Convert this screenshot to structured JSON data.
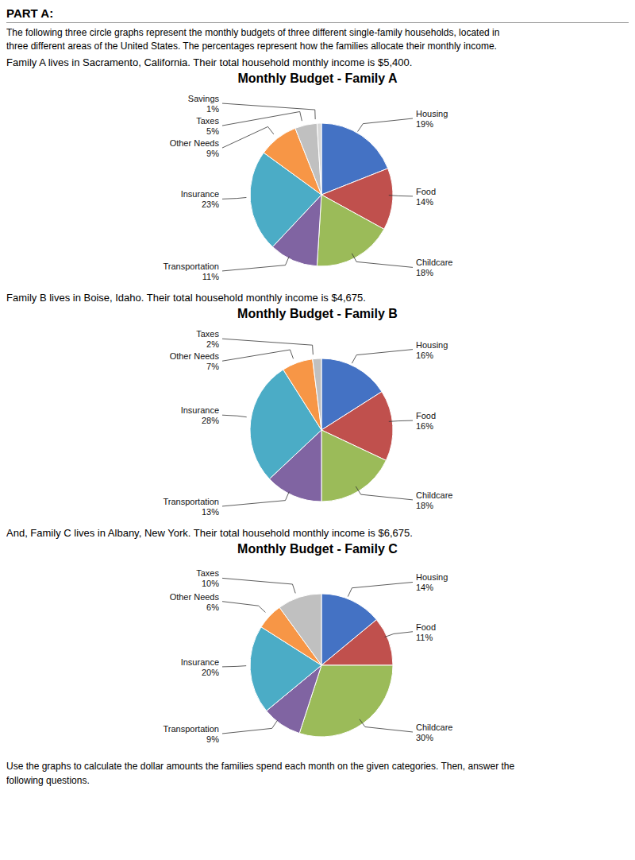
{
  "title": "PART A:",
  "subtitle": "The following three circle graphs represent the monthly budgets of three different single-family households, located in\nthree different areas of the United States. The percentages represent how the families allocate their monthly income.",
  "annotations": [
    "Use the graphs to calculate the dollar amounts the families spend each month on the given categories. Then, answer the\nfollowing questions."
  ],
  "chart_data": [
    {
      "type": "pie",
      "subtitle": "Family A lives in Sacramento, California. Their total household monthly income is $5,400.",
      "title": "Monthly Budget - Family A",
      "categories": [
        "Housing",
        "Food",
        "Childcare",
        "Transportation",
        "Insurance",
        "Other Needs",
        "Taxes",
        "Savings"
      ],
      "values": [
        19,
        14,
        18,
        11,
        23,
        9,
        5,
        1
      ],
      "value_labels": [
        "19%",
        "14%",
        "18%",
        "11%",
        "23%",
        "9%",
        "5%",
        "1%"
      ],
      "colors": [
        "#4472C4",
        "#C0504D",
        "#9BBB59",
        "#8064A2",
        "#4BACC6",
        "#F79646",
        "#C0C0C0",
        "#D8D8D8"
      ],
      "data_labels": true
    },
    {
      "type": "pie",
      "subtitle": "Family B lives in Boise, Idaho. Their total household monthly income is $4,675.",
      "title": "Monthly Budget - Family B",
      "categories": [
        "Housing",
        "Food",
        "Childcare",
        "Transportation",
        "Insurance",
        "Other Needs",
        "Taxes"
      ],
      "values": [
        16,
        16,
        18,
        13,
        28,
        7,
        2
      ],
      "value_labels": [
        "16%",
        "16%",
        "18%",
        "13%",
        "28%",
        "7%",
        "2%"
      ],
      "colors": [
        "#4472C4",
        "#C0504D",
        "#9BBB59",
        "#8064A2",
        "#4BACC6",
        "#F79646",
        "#C0C0C0"
      ],
      "data_labels": true
    },
    {
      "type": "pie",
      "subtitle": "And, Family C lives in Albany, New York. Their total household monthly income is $6,675.",
      "title": "Monthly Budget - Family C",
      "categories": [
        "Housing",
        "Food",
        "Childcare",
        "Transportation",
        "Insurance",
        "Other Needs",
        "Taxes"
      ],
      "values": [
        14,
        11,
        30,
        9,
        20,
        6,
        10
      ],
      "value_labels": [
        "14%",
        "11%",
        "30%",
        "9%",
        "20%",
        "6%",
        "10%"
      ],
      "colors": [
        "#4472C4",
        "#C0504D",
        "#9BBB59",
        "#8064A2",
        "#4BACC6",
        "#F79646",
        "#C0C0C0"
      ],
      "data_labels": true
    }
  ]
}
